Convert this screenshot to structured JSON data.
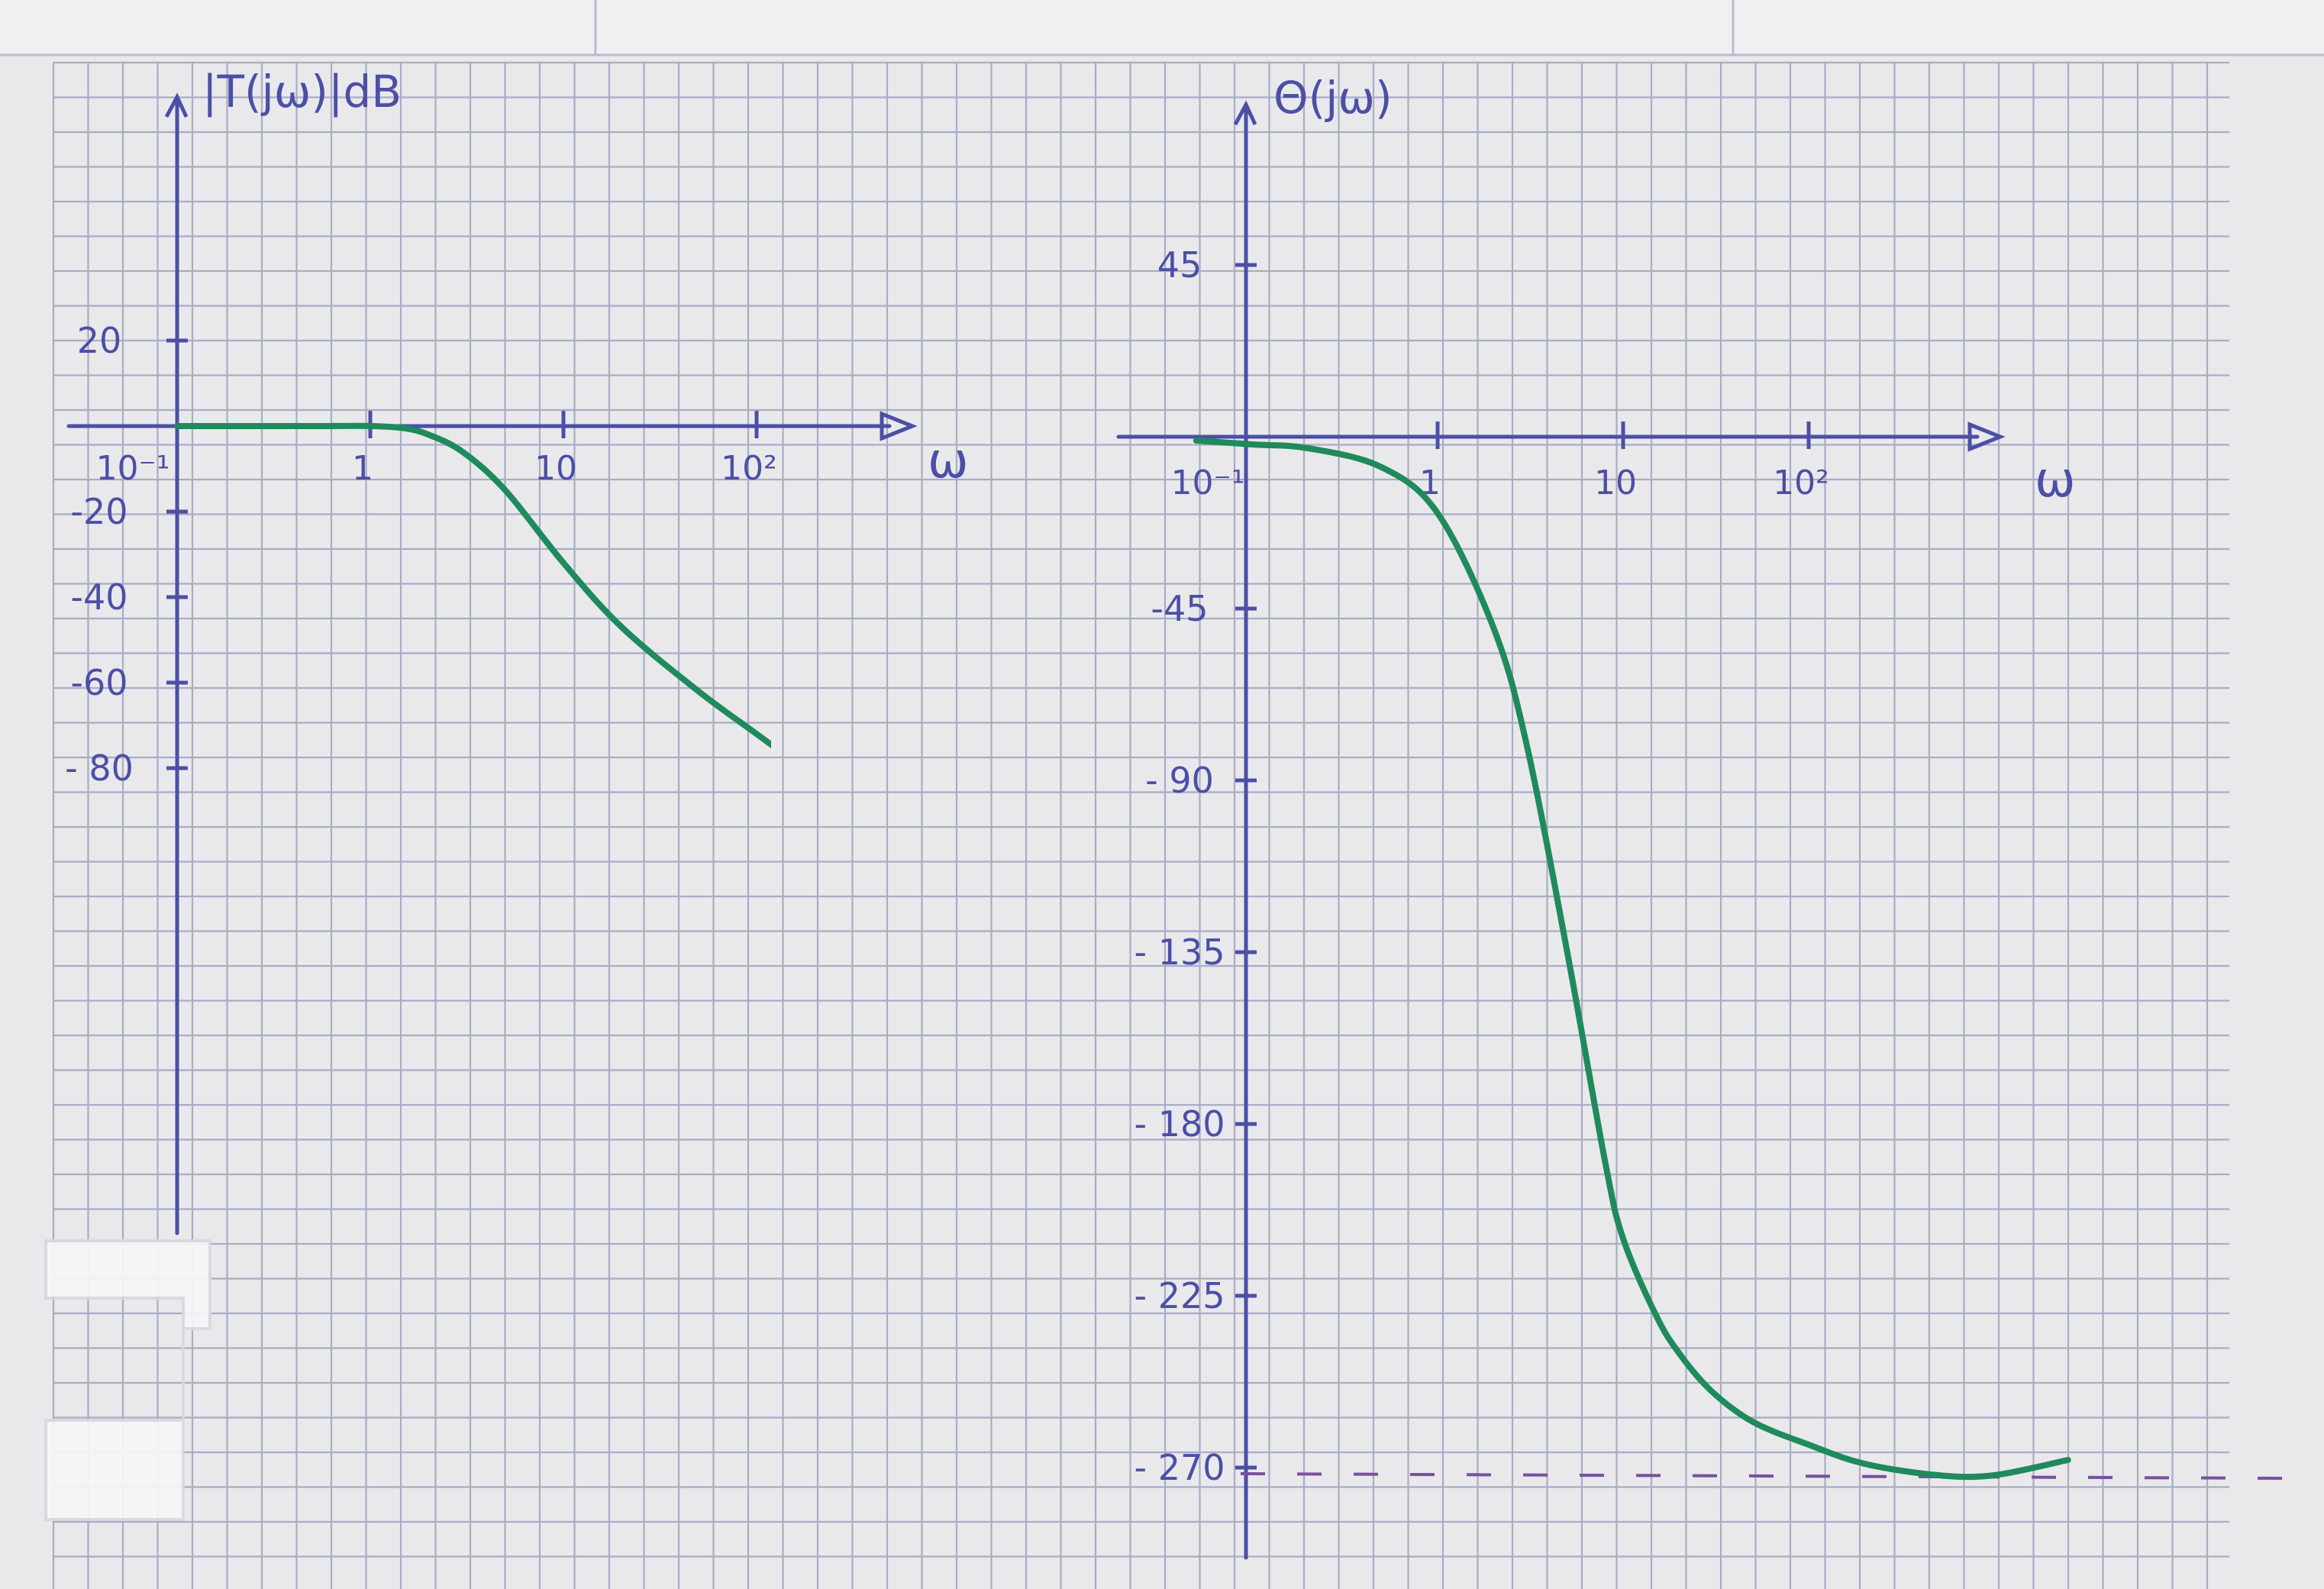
{
  "colors": {
    "paper": "#e9e9ec",
    "grid": "#a9acc4",
    "axis": "#4b4fa6",
    "curve": "#1f8a5c",
    "asymptote": "#7a4fa0"
  },
  "chart_data": [
    {
      "type": "line",
      "title": "",
      "ylabel": "|T(jω)|dB",
      "xlabel": "ω",
      "xscale": "log",
      "xlim": [
        0.1,
        200
      ],
      "ylim": [
        -80,
        20
      ],
      "x_ticks": [
        0.1,
        1,
        10,
        100
      ],
      "x_tick_labels": [
        "10⁻¹",
        "1",
        "10",
        "10²"
      ],
      "y_ticks": [
        20,
        -20,
        -40,
        -60,
        -80
      ],
      "y_tick_labels": [
        "20",
        "-20",
        "-40",
        "-60",
        "- 80"
      ],
      "grid": true,
      "series": [
        {
          "x": [
            0.1,
            0.5,
            1,
            1.5,
            2,
            3,
            5,
            10,
            20,
            50,
            100,
            200
          ],
          "y": [
            0,
            0,
            0,
            -0.5,
            -2,
            -6,
            -15,
            -32,
            -47,
            -62,
            -72,
            -82
          ]
        }
      ]
    },
    {
      "type": "line",
      "title": "",
      "ylabel": "Θ(jω)",
      "xlabel": "ω",
      "xscale": "log",
      "xlim": [
        0.1,
        1000
      ],
      "ylim": [
        -270,
        45
      ],
      "x_ticks": [
        0.1,
        1,
        10,
        100
      ],
      "x_tick_labels": [
        "10⁻¹",
        "1",
        "10",
        "10²"
      ],
      "y_ticks": [
        45,
        -45,
        -90,
        -135,
        -180,
        -225,
        -270
      ],
      "y_tick_labels": [
        "45",
        "-45",
        "- 90",
        "- 135",
        "- 180",
        "- 225",
        "- 270"
      ],
      "asymptote_y": -270,
      "grid": true,
      "series": [
        {
          "x": [
            0.05,
            0.1,
            0.2,
            0.5,
            1,
            2,
            3,
            5,
            8,
            10,
            15,
            20,
            30,
            50,
            100,
            200,
            500,
            1000,
            2500
          ],
          "y": [
            -1,
            -2,
            -3,
            -8,
            -20,
            -50,
            -80,
            -135,
            -190,
            -210,
            -230,
            -240,
            -250,
            -258,
            -264,
            -269,
            -272,
            -272,
            -268
          ]
        }
      ]
    }
  ]
}
